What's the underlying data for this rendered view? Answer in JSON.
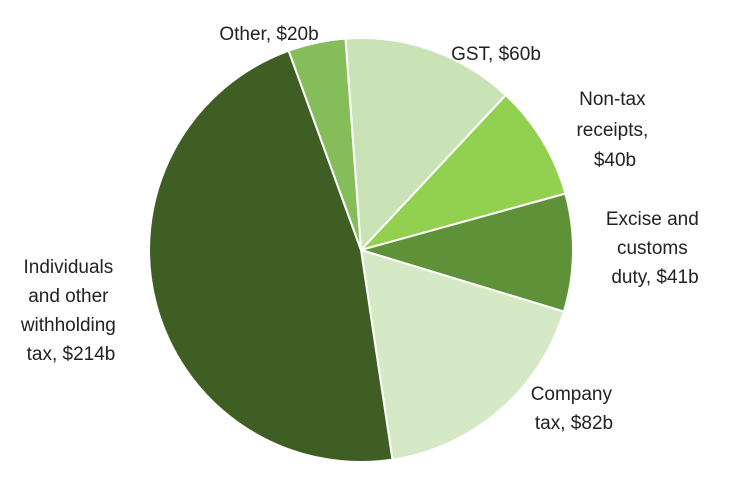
{
  "chart_data": {
    "type": "pie",
    "title": "",
    "start_angle_deg": -4.2,
    "direction": "clockwise",
    "slices": [
      {
        "label": "GST, $60b",
        "label_lines": [
          "GST, $60b"
        ],
        "value": 60,
        "color": "#c9e2b6"
      },
      {
        "label": "Non-tax receipts, $40b",
        "label_lines": [
          "Non-tax",
          "receipts,",
          "$40b"
        ],
        "value": 40,
        "color": "#92d050"
      },
      {
        "label": "Excise and customs duty, $41b",
        "label_lines": [
          "Excise and",
          "customs",
          "duty, $41b"
        ],
        "value": 41,
        "color": "#5f9138"
      },
      {
        "label": "Company tax, $82b",
        "label_lines": [
          "Company",
          "tax, $82b"
        ],
        "value": 82,
        "color": "#d6e9c6"
      },
      {
        "label": "Individuals and other withholding tax, $214b",
        "label_lines": [
          "Individuals",
          "and other",
          "withholding",
          "tax, $214b"
        ],
        "value": 214,
        "color": "#3e5e24"
      },
      {
        "label": "Other, $20b",
        "label_lines": [
          "Other, $20b"
        ],
        "value": 20,
        "color": "#86bd5b"
      }
    ]
  }
}
